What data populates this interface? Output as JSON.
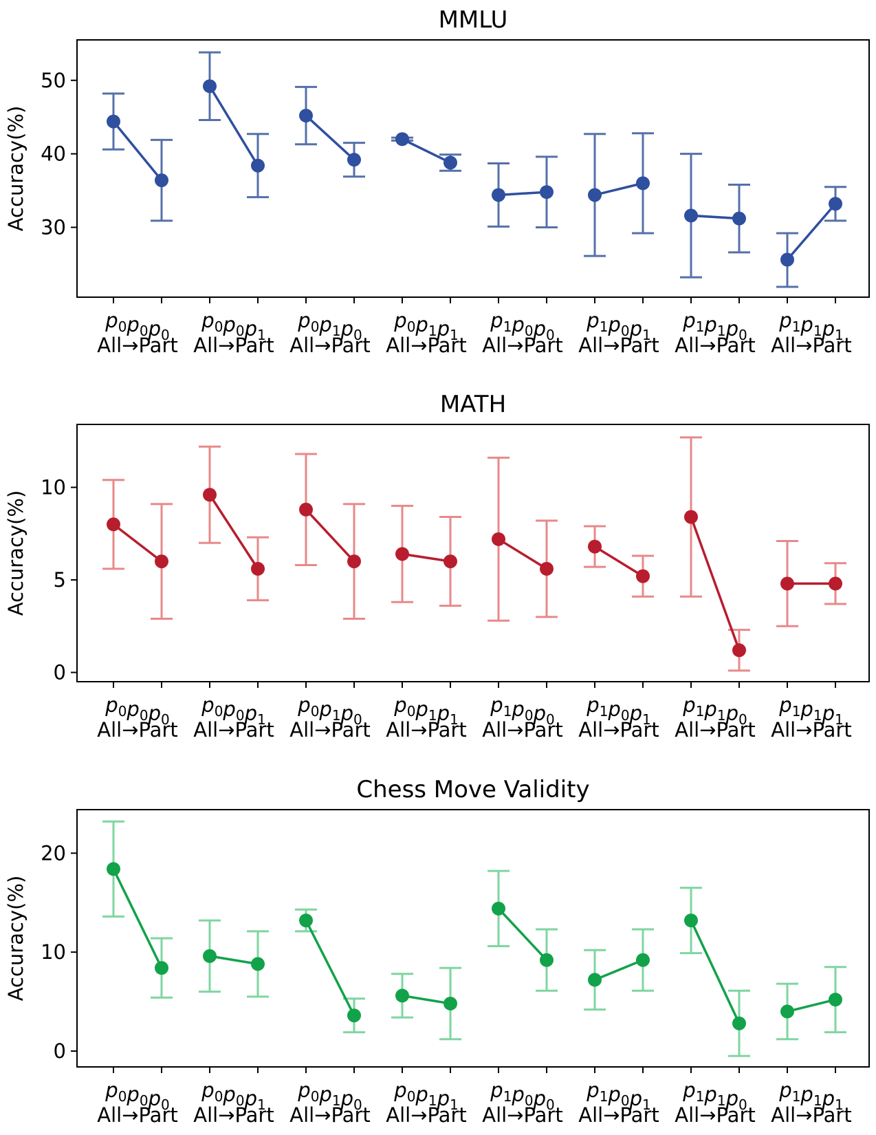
{
  "chart_data": [
    {
      "type": "line",
      "title": "MMLU",
      "ylabel": "Accuracy(%)",
      "xlabel": "",
      "ylim": [
        20.5,
        55.5
      ],
      "yticks": [
        30,
        40,
        50
      ],
      "grid": false,
      "color": "#2f4f9f",
      "error_color": "#5570aa",
      "groups": [
        {
          "label": "p0p0p0",
          "line2": "All→Part",
          "points": [
            {
              "y": 44.4,
              "low": 40.6,
              "high": 48.2
            },
            {
              "y": 36.4,
              "low": 30.9,
              "high": 41.9
            }
          ]
        },
        {
          "label": "p0p0p1",
          "line2": "All→Part",
          "points": [
            {
              "y": 49.2,
              "low": 44.6,
              "high": 53.8
            },
            {
              "y": 38.4,
              "low": 34.1,
              "high": 42.7
            }
          ]
        },
        {
          "label": "p0p1p0",
          "line2": "All→Part",
          "points": [
            {
              "y": 45.2,
              "low": 41.3,
              "high": 49.1
            },
            {
              "y": 39.2,
              "low": 36.9,
              "high": 41.5
            }
          ]
        },
        {
          "label": "p0p1p1",
          "line2": "All→Part",
          "points": [
            {
              "y": 42.0,
              "low": 41.8,
              "high": 42.2
            },
            {
              "y": 38.8,
              "low": 37.7,
              "high": 39.9
            }
          ]
        },
        {
          "label": "p1p0p0",
          "line2": "All→Part",
          "points": [
            {
              "y": 34.4,
              "low": 30.1,
              "high": 38.7
            },
            {
              "y": 34.8,
              "low": 30.0,
              "high": 39.6
            }
          ]
        },
        {
          "label": "p1p0p1",
          "line2": "All→Part",
          "points": [
            {
              "y": 34.4,
              "low": 26.1,
              "high": 42.7
            },
            {
              "y": 36.0,
              "low": 29.2,
              "high": 42.8
            }
          ]
        },
        {
          "label": "p1p1p0",
          "line2": "All→Part",
          "points": [
            {
              "y": 31.6,
              "low": 23.2,
              "high": 40.0
            },
            {
              "y": 31.2,
              "low": 26.6,
              "high": 35.8
            }
          ]
        },
        {
          "label": "p1p1p1",
          "line2": "All→Part",
          "points": [
            {
              "y": 25.6,
              "low": 21.9,
              "high": 29.2
            },
            {
              "y": 33.2,
              "low": 30.9,
              "high": 35.5
            }
          ]
        }
      ]
    },
    {
      "type": "line",
      "title": "MATH",
      "ylabel": "Accuracy(%)",
      "xlabel": "",
      "ylim": [
        -0.5,
        13.4
      ],
      "yticks": [
        0,
        5,
        10
      ],
      "grid": false,
      "color": "#b81d2e",
      "error_color": "#e8898a",
      "groups": [
        {
          "label": "p0p0p0",
          "line2": "All→Part",
          "points": [
            {
              "y": 8.0,
              "low": 5.6,
              "high": 10.4
            },
            {
              "y": 6.0,
              "low": 2.9,
              "high": 9.1
            }
          ]
        },
        {
          "label": "p0p0p1",
          "line2": "All→Part",
          "points": [
            {
              "y": 9.6,
              "low": 7.0,
              "high": 12.2
            },
            {
              "y": 5.6,
              "low": 3.9,
              "high": 7.3
            }
          ]
        },
        {
          "label": "p0p1p0",
          "line2": "All→Part",
          "points": [
            {
              "y": 8.8,
              "low": 5.8,
              "high": 11.8
            },
            {
              "y": 6.0,
              "low": 2.9,
              "high": 9.1
            }
          ]
        },
        {
          "label": "p0p1p1",
          "line2": "All→Part",
          "points": [
            {
              "y": 6.4,
              "low": 3.8,
              "high": 9.0
            },
            {
              "y": 6.0,
              "low": 3.6,
              "high": 8.4
            }
          ]
        },
        {
          "label": "p1p0p0",
          "line2": "All→Part",
          "points": [
            {
              "y": 7.2,
              "low": 2.8,
              "high": 11.6
            },
            {
              "y": 5.6,
              "low": 3.0,
              "high": 8.2
            }
          ]
        },
        {
          "label": "p1p0p1",
          "line2": "All→Part",
          "points": [
            {
              "y": 6.8,
              "low": 5.7,
              "high": 7.9
            },
            {
              "y": 5.2,
              "low": 4.1,
              "high": 6.3
            }
          ]
        },
        {
          "label": "p1p1p0",
          "line2": "All→Part",
          "points": [
            {
              "y": 8.4,
              "low": 4.1,
              "high": 12.7
            },
            {
              "y": 1.2,
              "low": 0.1,
              "high": 2.3
            }
          ]
        },
        {
          "label": "p1p1p1",
          "line2": "All→Part",
          "points": [
            {
              "y": 4.8,
              "low": 2.5,
              "high": 7.1
            },
            {
              "y": 4.8,
              "low": 3.7,
              "high": 5.9
            }
          ]
        }
      ]
    },
    {
      "type": "line",
      "title": "Chess Move Validity",
      "ylabel": "Accuracy(%)",
      "xlabel": "",
      "ylim": [
        -1.6,
        24.4
      ],
      "yticks": [
        0,
        10,
        20
      ],
      "grid": false,
      "color": "#12a24a",
      "error_color": "#7ed6a0",
      "groups": [
        {
          "label": "p0p0p0",
          "line2": "All→Part",
          "points": [
            {
              "y": 18.4,
              "low": 13.6,
              "high": 23.2
            },
            {
              "y": 8.4,
              "low": 5.4,
              "high": 11.4
            }
          ]
        },
        {
          "label": "p0p0p1",
          "line2": "All→Part",
          "points": [
            {
              "y": 9.6,
              "low": 6.0,
              "high": 13.2
            },
            {
              "y": 8.8,
              "low": 5.5,
              "high": 12.1
            }
          ]
        },
        {
          "label": "p0p1p0",
          "line2": "All→Part",
          "points": [
            {
              "y": 13.2,
              "low": 12.1,
              "high": 14.3
            },
            {
              "y": 3.6,
              "low": 1.9,
              "high": 5.3
            }
          ]
        },
        {
          "label": "p0p1p1",
          "line2": "All→Part",
          "points": [
            {
              "y": 5.6,
              "low": 3.4,
              "high": 7.8
            },
            {
              "y": 4.8,
              "low": 1.2,
              "high": 8.4
            }
          ]
        },
        {
          "label": "p1p0p0",
          "line2": "All→Part",
          "points": [
            {
              "y": 14.4,
              "low": 10.6,
              "high": 18.2
            },
            {
              "y": 9.2,
              "low": 6.1,
              "high": 12.3
            }
          ]
        },
        {
          "label": "p1p0p1",
          "line2": "All→Part",
          "points": [
            {
              "y": 7.2,
              "low": 4.2,
              "high": 10.2
            },
            {
              "y": 9.2,
              "low": 6.1,
              "high": 12.3
            }
          ]
        },
        {
          "label": "p1p1p0",
          "line2": "All→Part",
          "points": [
            {
              "y": 13.2,
              "low": 9.9,
              "high": 16.5
            },
            {
              "y": 2.8,
              "low": -0.5,
              "high": 6.1
            }
          ]
        },
        {
          "label": "p1p1p1",
          "line2": "All→Part",
          "points": [
            {
              "y": 4.0,
              "low": 1.2,
              "high": 6.8
            },
            {
              "y": 5.2,
              "low": 1.9,
              "high": 8.5
            }
          ]
        }
      ]
    }
  ]
}
